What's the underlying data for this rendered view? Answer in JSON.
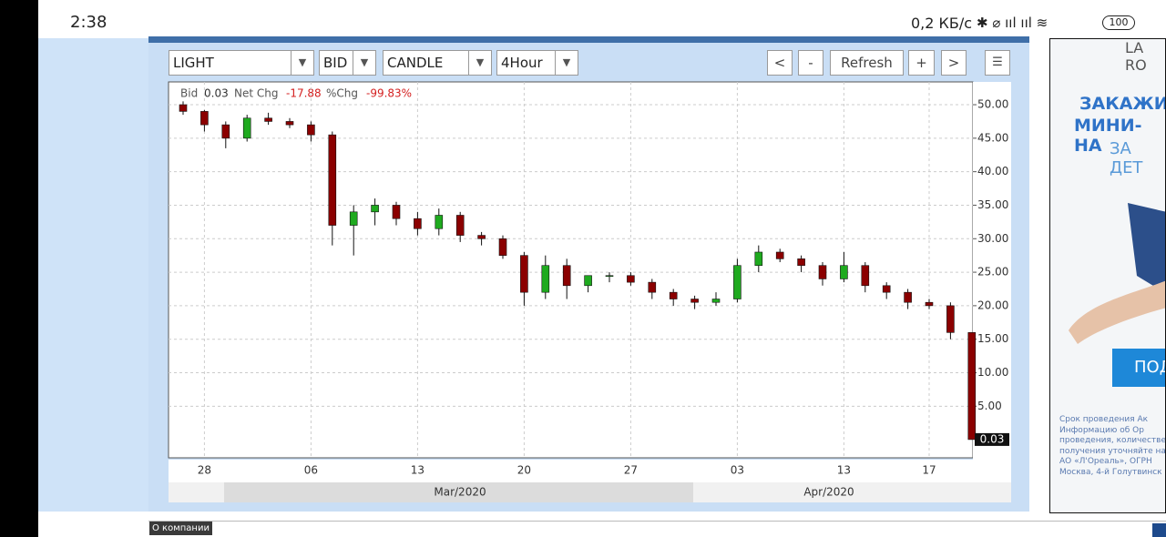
{
  "status_bar": {
    "time": "2:38",
    "speed": "0,2 КБ/с",
    "battery": "100"
  },
  "toolbar": {
    "symbol": "LIGHT",
    "side": "BID",
    "style": "CANDLE",
    "interval": "4Hour",
    "prev": "<",
    "zoom_out": "-",
    "refresh": "Refresh",
    "zoom_in": "+",
    "next": ">"
  },
  "chart_data": {
    "type": "candlestick",
    "header": {
      "bid_label": "Bid",
      "bid": "0.03",
      "net_label": "Net Chg",
      "net": "-17.88",
      "pct_label": "%Chg",
      "pct": "-99.83%"
    },
    "categories": [
      null,
      "28",
      null,
      null,
      null,
      null,
      "06",
      null,
      null,
      null,
      null,
      "13",
      null,
      null,
      null,
      null,
      "20",
      null,
      null,
      null,
      null,
      "27",
      null,
      null,
      null,
      null,
      "03",
      null,
      null,
      null,
      null,
      "13",
      null,
      null,
      null,
      "17",
      null,
      null
    ],
    "open": [
      50,
      49,
      47,
      45,
      48,
      47.5,
      47,
      45.5,
      32,
      34,
      35,
      33,
      31.5,
      33.5,
      30.5,
      30,
      27.5,
      22,
      26,
      23,
      24.5,
      24.5,
      23.5,
      22,
      21,
      20.5,
      21,
      26,
      28,
      27,
      26,
      24,
      26,
      23,
      22,
      20.5,
      20,
      16
    ],
    "high": [
      50.5,
      49.2,
      47.5,
      48.5,
      48.8,
      48,
      47.5,
      46,
      35,
      36,
      35.5,
      34,
      34.5,
      34,
      31,
      30.5,
      28,
      27.5,
      27,
      24.5,
      25,
      25,
      24,
      22.5,
      21.5,
      22,
      27,
      29,
      28.5,
      27.5,
      26.5,
      28,
      26.5,
      23.5,
      22.5,
      21,
      20.5,
      16
    ],
    "low": [
      48.5,
      46,
      43.5,
      44.5,
      47,
      46.5,
      44.5,
      29,
      27.5,
      32,
      32,
      30.5,
      30.5,
      29.5,
      29,
      27,
      20,
      21,
      21,
      22,
      23.5,
      23,
      21,
      20,
      19.5,
      20,
      20.5,
      25,
      26.5,
      25,
      23,
      23.5,
      22,
      21,
      19.5,
      19.5,
      15,
      0.01
    ],
    "close": [
      49,
      47,
      45,
      48,
      47.5,
      47,
      45.5,
      32,
      34,
      35,
      33,
      31.5,
      33.5,
      30.5,
      30,
      27.5,
      22,
      26,
      23,
      24.5,
      24.5,
      23.5,
      22,
      21,
      20.5,
      21,
      26,
      28,
      27,
      26,
      24,
      26,
      23,
      22,
      20.5,
      20,
      16,
      0.03
    ],
    "up_color": "#1faa1f",
    "down_color": "#8b0000",
    "grid": true,
    "ylim": [
      -2.7,
      53.4
    ],
    "yticks": [
      {
        "value": 5,
        "label": "5.00"
      },
      {
        "value": 10,
        "label": "10.00"
      },
      {
        "value": 15,
        "label": "15.00"
      },
      {
        "value": 20,
        "label": "20.00"
      },
      {
        "value": 25,
        "label": "25.00"
      },
      {
        "value": 30,
        "label": "30.00"
      },
      {
        "value": 35,
        "label": "35.00"
      },
      {
        "value": 40,
        "label": "40.00"
      },
      {
        "value": 45,
        "label": "45.00"
      },
      {
        "value": 50,
        "label": "50.00"
      }
    ],
    "months": [
      "Mar/2020",
      "Apr/2020"
    ]
  },
  "ad": {
    "brand": "LA RO",
    "line1": "ЗАКАЖИ",
    "line2": "МИНИ-НА",
    "line3": "ЗА ДЕТ",
    "button": "ПОД",
    "fine_print": [
      "Срок проведения Ак",
      "Информацию об Ор",
      "проведения, количестве",
      "получения уточняйте на",
      "АО «Л'Ореаль», ОГРН",
      "Москва, 4-й Голутвинск"
    ]
  },
  "footer": {
    "about": "О компании"
  }
}
